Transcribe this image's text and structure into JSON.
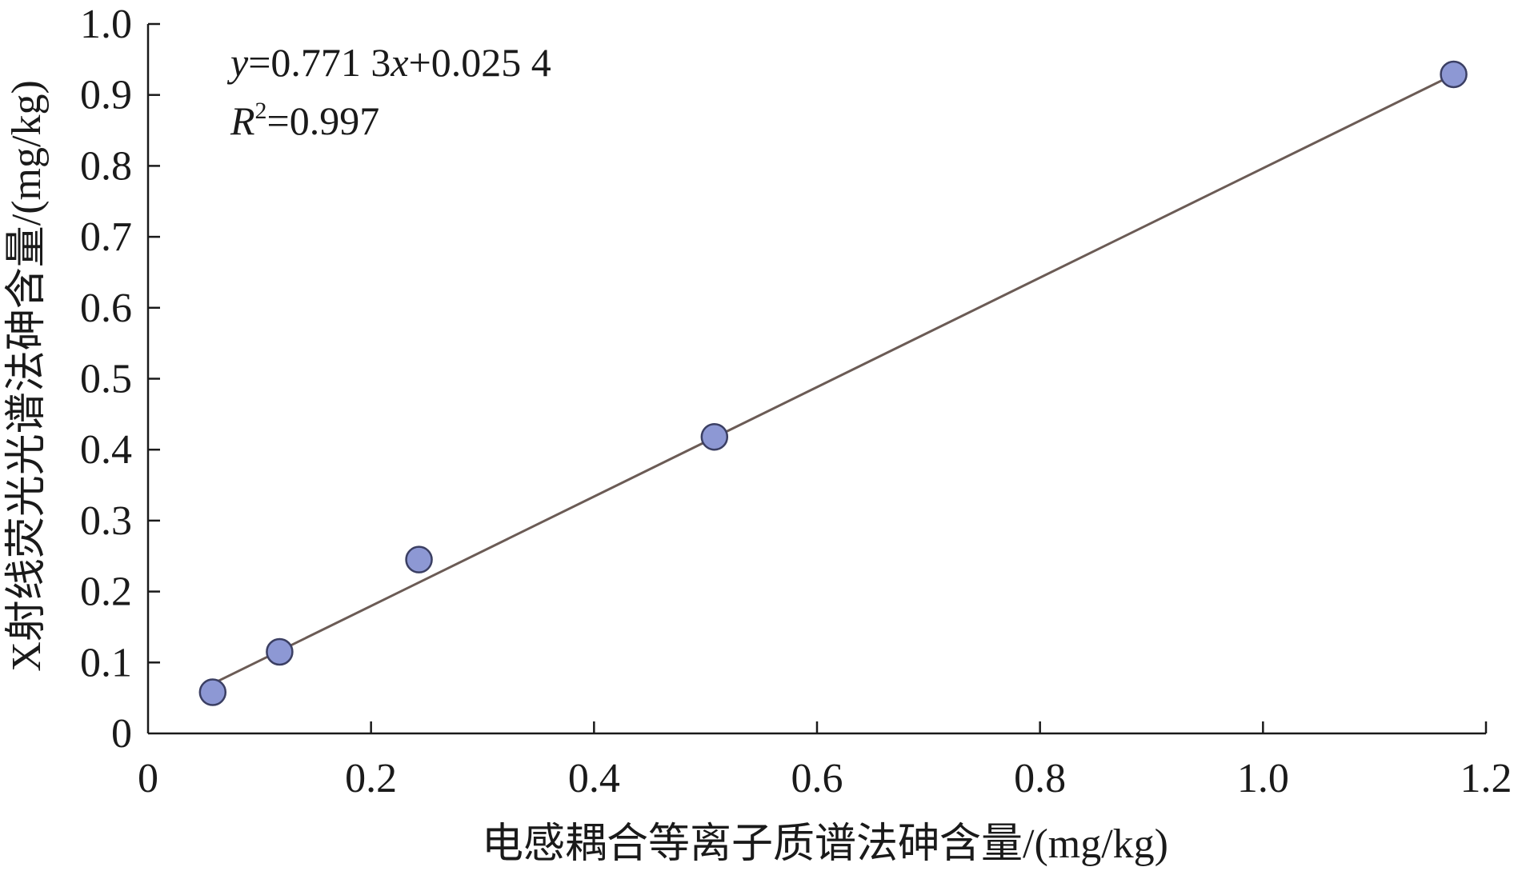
{
  "chart_data": {
    "type": "scatter",
    "xlabel": "电感耦合等离子质谱法砷含量/(mg/kg)",
    "ylabel": "X射线荧光光谱法砷含量/(mg/kg)",
    "xlim": [
      0,
      1.2
    ],
    "ylim": [
      0,
      1.0
    ],
    "x_ticks": [
      "0",
      "0.2",
      "0.4",
      "0.6",
      "0.8",
      "1.0",
      "1.2"
    ],
    "y_ticks": [
      "0",
      "0.1",
      "0.2",
      "0.3",
      "0.4",
      "0.5",
      "0.6",
      "0.7",
      "0.8",
      "0.9",
      "1.0"
    ],
    "grid": false,
    "points": [
      {
        "x": 0.058,
        "y": 0.058
      },
      {
        "x": 0.118,
        "y": 0.115
      },
      {
        "x": 0.243,
        "y": 0.245
      },
      {
        "x": 0.508,
        "y": 0.418
      },
      {
        "x": 1.171,
        "y": 0.929
      }
    ],
    "fit": {
      "slope": 0.7713,
      "intercept": 0.0254,
      "x_range": [
        0.058,
        1.171
      ],
      "equation": {
        "y": "y",
        "eq_mid": "=0.771 3",
        "x": "x",
        "eq_tail": "+0.025 4"
      },
      "r2": {
        "r": "R",
        "sup": "2",
        "tail": "=0.997"
      }
    },
    "colors": {
      "point_fill": "#8d98d4",
      "point_stroke": "#3b3f63",
      "line": "#6b5b55",
      "axis": "#1a1a1a"
    }
  }
}
